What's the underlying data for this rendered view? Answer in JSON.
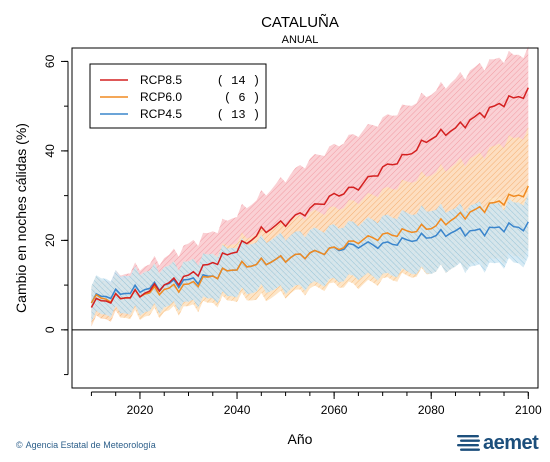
{
  "chart_data": {
    "type": "line",
    "title": "CATALUÑA",
    "subtitle": "ANUAL",
    "xlabel": "Año",
    "ylabel": "Cambio en noches cálidas (%)",
    "xlim": [
      2006,
      2102
    ],
    "ylim": [
      -13,
      63
    ],
    "xticks": [
      2020,
      2040,
      2060,
      2080,
      2100
    ],
    "yticks": [
      0,
      20,
      40,
      60
    ],
    "legend_position": "top-left",
    "series": [
      {
        "name": "RCP8.5",
        "count": "( 14 )",
        "color": "#d42020",
        "band_color": "#f4a0a8",
        "x": [
          2010,
          2015,
          2020,
          2025,
          2030,
          2035,
          2040,
          2045,
          2050,
          2055,
          2060,
          2065,
          2070,
          2075,
          2080,
          2085,
          2090,
          2095,
          2100
        ],
        "values": [
          6,
          7,
          8,
          10,
          12,
          15,
          18,
          22,
          24,
          27,
          30,
          32,
          36,
          39,
          43,
          45,
          48,
          51,
          53
        ],
        "low": [
          2,
          3,
          4,
          5,
          6,
          7,
          9,
          11,
          13,
          15,
          17,
          19,
          21,
          23,
          24,
          26,
          28,
          30,
          32
        ],
        "high": [
          10,
          12,
          14,
          16,
          19,
          22,
          26,
          30,
          34,
          38,
          41,
          44,
          47,
          50,
          53,
          56,
          59,
          61,
          62
        ]
      },
      {
        "name": "RCP6.0",
        "count": "(   6 )",
        "color": "#f08a20",
        "band_color": "#fbcf9a",
        "x": [
          2010,
          2015,
          2020,
          2025,
          2030,
          2035,
          2040,
          2045,
          2050,
          2055,
          2060,
          2065,
          2070,
          2075,
          2080,
          2085,
          2090,
          2095,
          2100
        ],
        "values": [
          7,
          7,
          8,
          9,
          10,
          12,
          14,
          15,
          16,
          17,
          18,
          20,
          21,
          22,
          23,
          25,
          27,
          29,
          31
        ],
        "low": [
          2,
          3,
          3,
          4,
          5,
          6,
          7,
          7,
          8,
          9,
          10,
          10,
          11,
          12,
          13,
          14,
          15,
          16,
          17
        ],
        "high": [
          11,
          11,
          13,
          14,
          15,
          17,
          20,
          22,
          24,
          26,
          27,
          29,
          31,
          33,
          35,
          37,
          39,
          42,
          44
        ]
      },
      {
        "name": "RCP4.5",
        "count": "( 13 )",
        "color": "#3a85cc",
        "band_color": "#a8d4ea",
        "x": [
          2010,
          2015,
          2020,
          2025,
          2030,
          2035,
          2040,
          2045,
          2050,
          2055,
          2060,
          2065,
          2070,
          2075,
          2080,
          2085,
          2090,
          2095,
          2100
        ],
        "values": [
          7,
          8,
          9,
          10,
          11,
          12,
          14,
          15,
          16,
          17,
          18,
          19,
          19,
          20,
          21,
          22,
          22,
          23,
          23
        ],
        "low": [
          3,
          4,
          4,
          5,
          6,
          7,
          8,
          9,
          9,
          10,
          11,
          12,
          12,
          13,
          13,
          14,
          14,
          15,
          15
        ],
        "high": [
          11,
          12,
          13,
          14,
          15,
          17,
          19,
          20,
          21,
          22,
          23,
          24,
          25,
          26,
          27,
          27,
          28,
          28,
          29
        ]
      }
    ]
  },
  "footer": {
    "copyright_symbol": "©",
    "agency": "Agencia Estatal de Meteorología",
    "logo_text": "aemet"
  }
}
